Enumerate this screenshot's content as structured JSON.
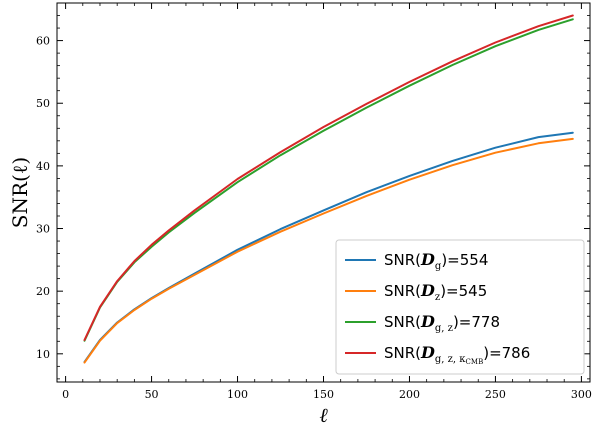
{
  "chart_data": {
    "type": "line",
    "xlabel": "ℓ",
    "ylabel": "SNR(ℓ)",
    "xlim": [
      -5,
      305
    ],
    "ylim": [
      5.5,
      66
    ],
    "xticks": [
      0,
      50,
      100,
      150,
      200,
      250,
      300
    ],
    "yticks": [
      10,
      20,
      30,
      40,
      50,
      60
    ],
    "grid": false,
    "legend": {
      "placement": "lower-right",
      "entries": [
        {
          "base": "SNR(",
          "sym": "D",
          "sub": "g",
          "tail": ")=554"
        },
        {
          "base": "SNR(",
          "sym": "D",
          "sub": "z",
          "tail": ")=545"
        },
        {
          "base": "SNR(",
          "sym": "D",
          "sub": "g, z",
          "tail": ")=778"
        },
        {
          "base": "SNR(",
          "sym": "D",
          "sub": "g, z, κ",
          "subsub": "CMB",
          "tail": ")=786"
        }
      ]
    },
    "series": [
      {
        "color": "#1f77b4",
        "x": [
          11,
          20,
          30,
          40,
          50,
          60,
          75,
          100,
          125,
          150,
          175,
          200,
          225,
          250,
          275,
          295
        ],
        "y": [
          8.7,
          12.2,
          15.0,
          17.1,
          18.9,
          20.5,
          22.8,
          26.6,
          29.9,
          32.9,
          35.8,
          38.4,
          40.8,
          42.9,
          44.6,
          45.3
        ]
      },
      {
        "color": "#ff7f0e",
        "x": [
          11,
          20,
          30,
          40,
          50,
          60,
          75,
          100,
          125,
          150,
          175,
          200,
          225,
          250,
          275,
          295
        ],
        "y": [
          8.6,
          12.1,
          14.9,
          17.0,
          18.8,
          20.4,
          22.6,
          26.3,
          29.5,
          32.4,
          35.2,
          37.8,
          40.1,
          42.1,
          43.6,
          44.3
        ]
      },
      {
        "color": "#2ca02c",
        "x": [
          11,
          20,
          30,
          40,
          50,
          60,
          75,
          100,
          125,
          150,
          175,
          200,
          225,
          250,
          275,
          295
        ],
        "y": [
          12.1,
          17.4,
          21.5,
          24.6,
          27.1,
          29.4,
          32.5,
          37.4,
          41.7,
          45.6,
          49.3,
          52.8,
          56.1,
          59.1,
          61.7,
          63.4
        ]
      },
      {
        "color": "#d62728",
        "x": [
          11,
          20,
          30,
          40,
          50,
          60,
          75,
          100,
          125,
          150,
          175,
          200,
          225,
          250,
          275,
          295
        ],
        "y": [
          12.2,
          17.5,
          21.6,
          24.8,
          27.4,
          29.7,
          32.9,
          37.9,
          42.2,
          46.2,
          49.9,
          53.4,
          56.7,
          59.7,
          62.3,
          64.0
        ]
      }
    ]
  }
}
